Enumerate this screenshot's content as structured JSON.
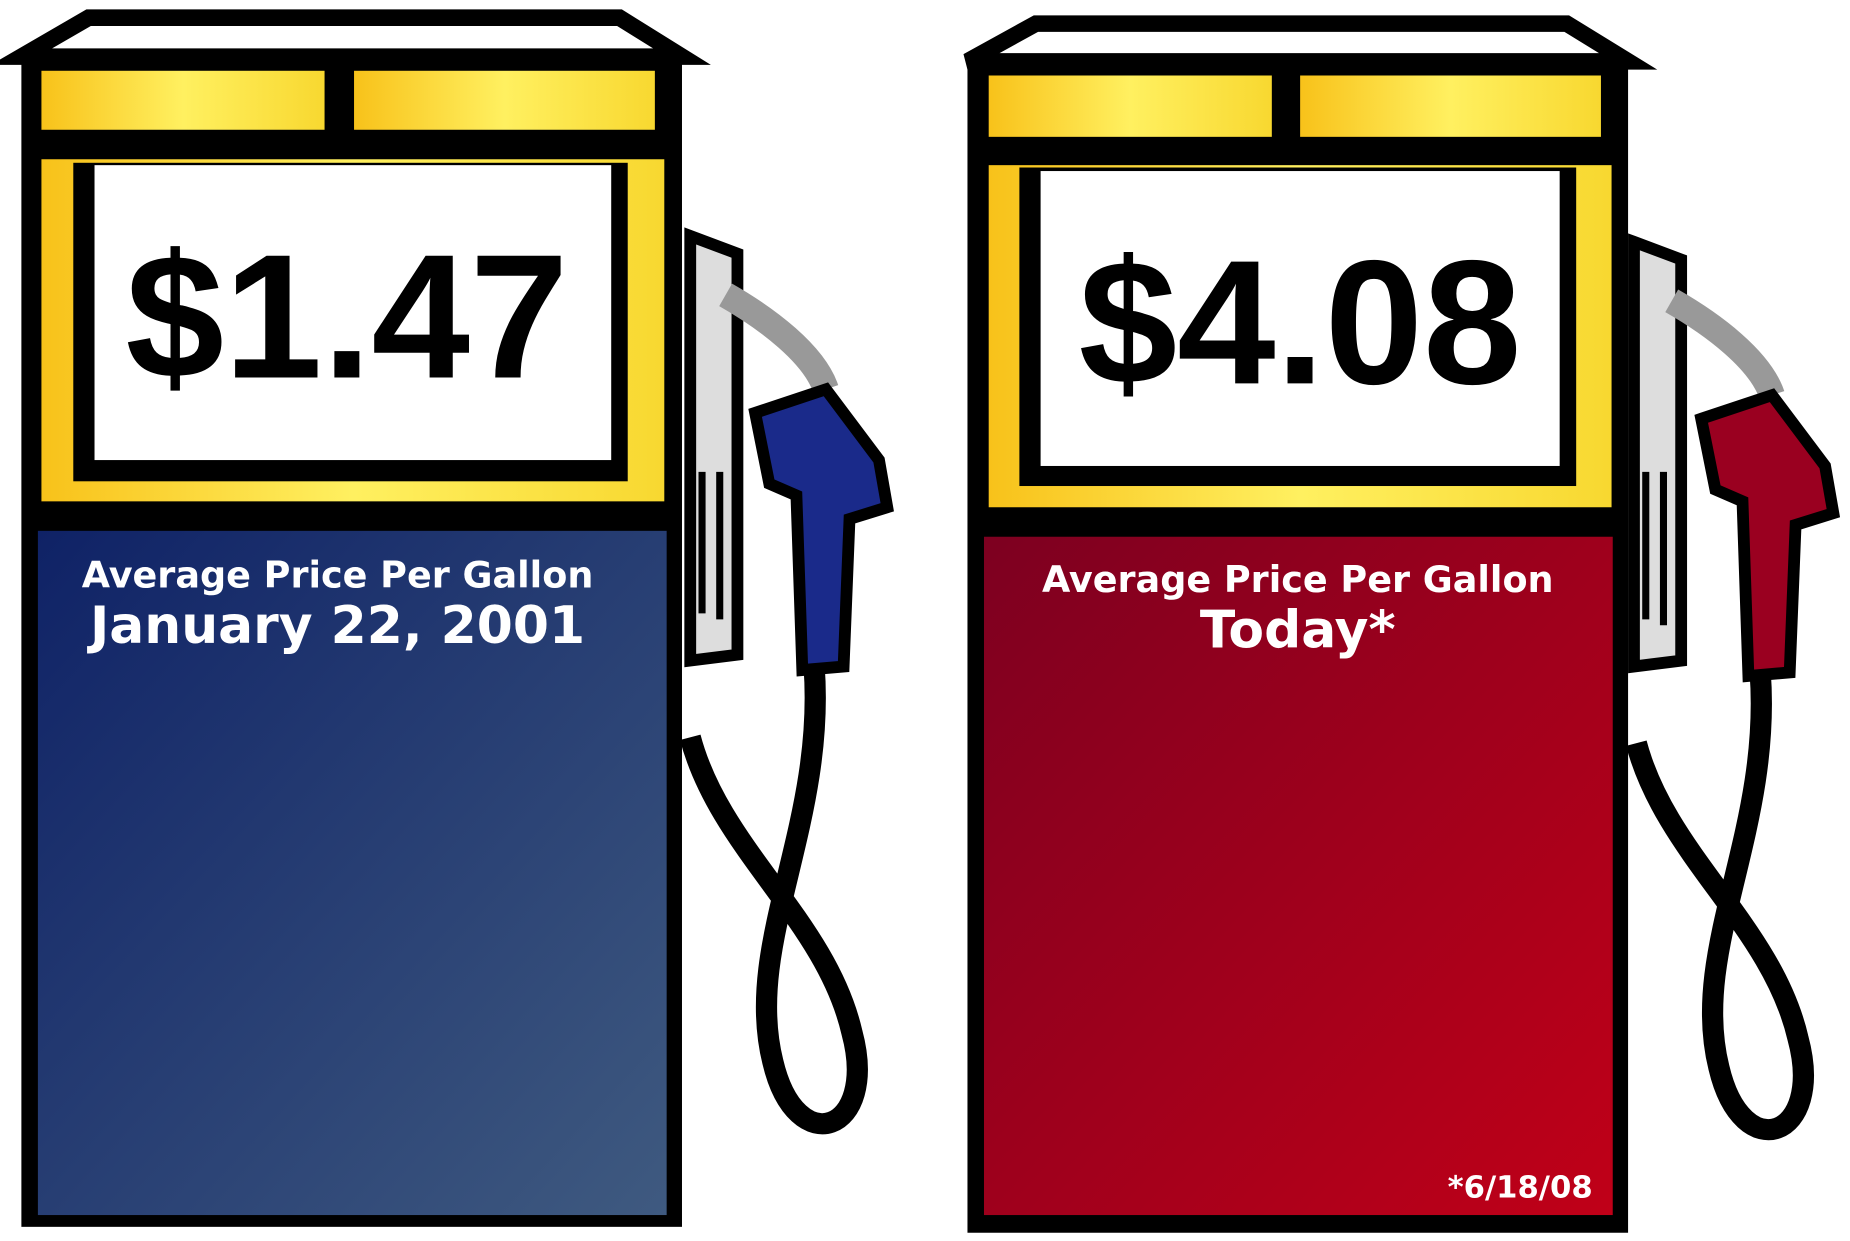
{
  "pumps": [
    {
      "price": "$1.47",
      "label": "Average Price Per Gallon",
      "date": "January 22, 2001"
    },
    {
      "price": "$4.08",
      "label": "Average Price Per Gallon",
      "date": "Today*",
      "footnote": "*6/18/08"
    }
  ]
}
